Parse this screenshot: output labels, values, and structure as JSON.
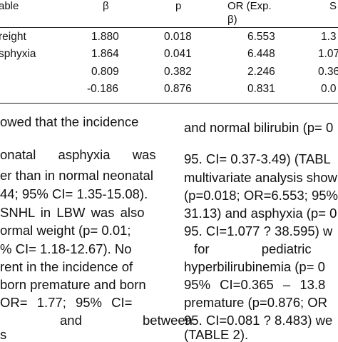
{
  "table": {
    "headers": [
      "able",
      "β",
      "p",
      "OR (Exp.",
      "β)",
      "S"
    ],
    "rows": [
      {
        "label": "reight",
        "beta": "1.880",
        "p": "0.018",
        "or": "6.553",
        "ci": "1.3"
      },
      {
        "label": "sphyxia",
        "beta": "1.864",
        "p": "0.041",
        "or": "6.448",
        "ci": "1.07"
      },
      {
        "label": "",
        "beta": "0.809",
        "p": "0.382",
        "or": "2.246",
        "ci": "0.36"
      },
      {
        "label": "",
        "beta": "-0.186",
        "p": "0.876",
        "or": "0.831",
        "ci": "0.0"
      }
    ]
  },
  "left_column": [
    "owed that the incidence",
    "onatal asphyxia was",
    "er than in normal neonatal",
    "44; 95% CI= 1.35-15.08).",
    "SNHL in LBW was also",
    "ormal weight (p= 0.01;",
    "% CI= 1.18-12.67). No",
    "rent in the incidence of",
    "born premature and born",
    "OR= 1.77; 95% CI=",
    "and between",
    "s"
  ],
  "right_column": [
    "and normal bilirubin (p= 0",
    "95. CI= 0.37-3.49) (TABL",
    "multivariate analysis show",
    "(p=0.018; OR=6.553; 95%",
    "31.13) and asphyxia (p= 0",
    "95. CI=1.077 ? 38.595) w",
    "for pediatric",
    "hyperbilirubinemia (p= 0",
    "95% CI=0.365 – 13.8",
    "premature (p=0.876; OR",
    "95. CI=0.081 ? 8.483) we",
    "(TABLE 2)."
  ]
}
